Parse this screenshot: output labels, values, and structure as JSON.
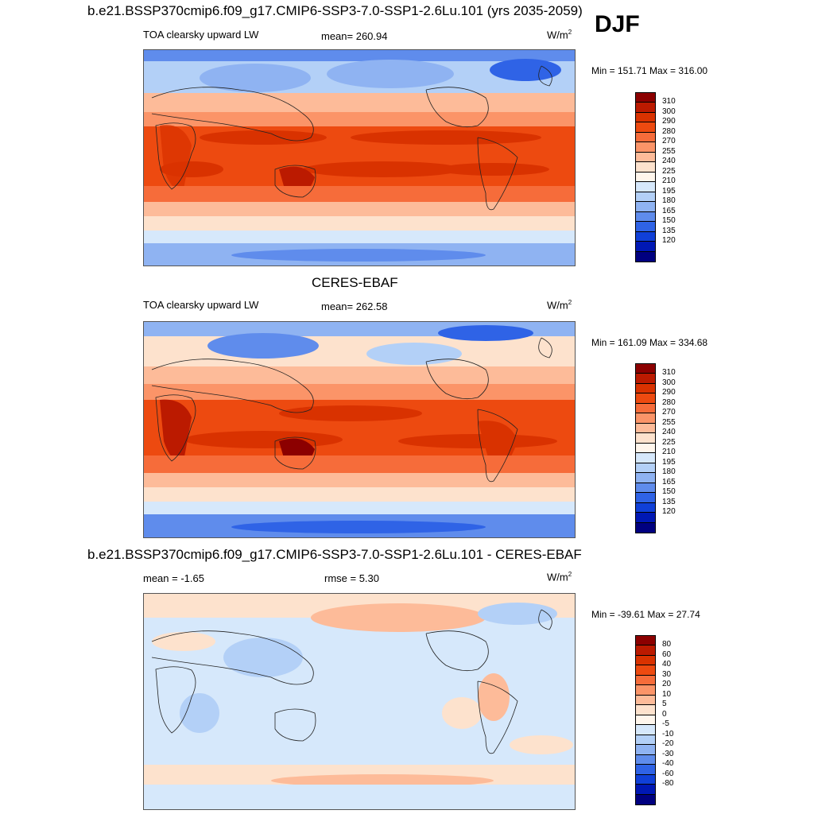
{
  "season": "DJF",
  "panels": [
    {
      "title": "b.e21.BSSP370cmip6.f09_g17.CMIP6-SSP3-7.0-SSP1-2.6Lu.101 (yrs 2035-2059)",
      "variable": "TOA clearsky upward LW",
      "stat": "mean= 260.94",
      "units": "W/m",
      "units_exp": "2",
      "minmax": "Min = 151.71 Max = 316.00"
    },
    {
      "title": "CERES-EBAF",
      "variable": "TOA clearsky upward LW",
      "stat": "mean= 262.58",
      "units": "W/m",
      "units_exp": "2",
      "minmax": "Min = 161.09 Max = 334.68"
    },
    {
      "title": "b.e21.BSSP370cmip6.f09_g17.CMIP6-SSP3-7.0-SSP1-2.6Lu.101 - CERES-EBAF",
      "variable": "mean =  -1.65",
      "stat": "rmse =    5.30",
      "units": "W/m",
      "units_exp": "2",
      "minmax": "Min = -39.61 Max =  27.74"
    }
  ],
  "colorbars": {
    "absolute": {
      "labels": [
        "310",
        "300",
        "290",
        "280",
        "270",
        "255",
        "240",
        "225",
        "210",
        "195",
        "180",
        "165",
        "150",
        "135",
        "120"
      ],
      "colors": [
        "#8c0000",
        "#bb1a00",
        "#d93200",
        "#ed4a10",
        "#f66c3a",
        "#fb9468",
        "#fdbb99",
        "#fde2cd",
        "#fff6ec",
        "#d6e8fb",
        "#b3d0f7",
        "#8fb3f2",
        "#5f8cec",
        "#2f63e6",
        "#1040d8",
        "#0018b4",
        "#000080"
      ]
    },
    "difference": {
      "labels": [
        "80",
        "60",
        "40",
        "30",
        "20",
        "10",
        "5",
        "0",
        "-5",
        "-10",
        "-20",
        "-30",
        "-40",
        "-60",
        "-80"
      ],
      "colors": [
        "#8c0000",
        "#bb1a00",
        "#d93200",
        "#ed4a10",
        "#f66c3a",
        "#fb9468",
        "#fdbb99",
        "#fde2cd",
        "#fff6ec",
        "#d6e8fb",
        "#b3d0f7",
        "#8fb3f2",
        "#5f8cec",
        "#2f63e6",
        "#1040d8",
        "#0018b4",
        "#000080"
      ]
    }
  }
}
